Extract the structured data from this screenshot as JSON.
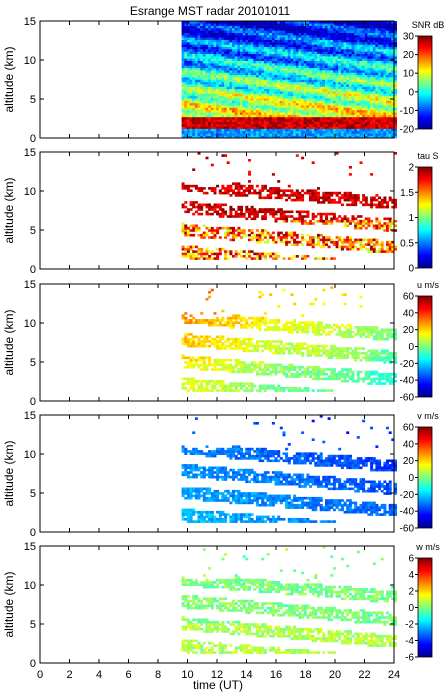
{
  "chart_data": {
    "type": "heatmap",
    "title": "Esrange MST radar 20101011",
    "xlabel": "time (UT)",
    "xlim": [
      0,
      24
    ],
    "xticks": [
      "0",
      "2",
      "4",
      "6",
      "8",
      "10",
      "12",
      "14",
      "16",
      "18",
      "20",
      "22",
      "24"
    ],
    "data_start_time_ut": 9.6,
    "panels": [
      {
        "ylabel": "altitude (km)",
        "ylim": [
          0,
          15
        ],
        "yticks": [
          "0",
          "5",
          "10",
          "15"
        ],
        "colorbar_label": "SNR dB",
        "colorbar_ticks": [
          "-20",
          "-10",
          "0",
          "10",
          "20",
          "30"
        ],
        "clim": [
          -20,
          30
        ],
        "colormap": "jet"
      },
      {
        "ylabel": "altitude (km)",
        "ylim": [
          0,
          15
        ],
        "yticks": [
          "0",
          "5",
          "10",
          "15"
        ],
        "colorbar_label": "tau S",
        "colorbar_ticks": [
          "0",
          "0.5",
          "1",
          "1.5",
          "2"
        ],
        "clim": [
          0,
          2
        ],
        "colormap": "jet"
      },
      {
        "ylabel": "altitude (km)",
        "ylim": [
          0,
          15
        ],
        "yticks": [
          "0",
          "5",
          "10",
          "15"
        ],
        "colorbar_label": "u m/s",
        "colorbar_ticks": [
          "-60",
          "-40",
          "-20",
          "0",
          "20",
          "40",
          "60"
        ],
        "clim": [
          -60,
          60
        ],
        "colormap": "jet"
      },
      {
        "ylabel": "altitude (km)",
        "ylim": [
          0,
          15
        ],
        "yticks": [
          "0",
          "5",
          "10",
          "15"
        ],
        "colorbar_label": "v m/s",
        "colorbar_ticks": [
          "-60",
          "-40",
          "-20",
          "0",
          "20",
          "40",
          "60"
        ],
        "clim": [
          -60,
          60
        ],
        "colormap": "jet"
      },
      {
        "ylabel": "altitude (km)",
        "ylim": [
          0,
          15
        ],
        "yticks": [
          "0",
          "5",
          "10",
          "15"
        ],
        "colorbar_label": "w m/s",
        "colorbar_ticks": [
          "-6",
          "-4",
          "-2",
          "0",
          "2",
          "4",
          "6"
        ],
        "clim": [
          -6,
          6
        ],
        "colormap": "jet"
      }
    ]
  },
  "colors": {
    "axis": "#000000",
    "background": "#ffffff"
  }
}
